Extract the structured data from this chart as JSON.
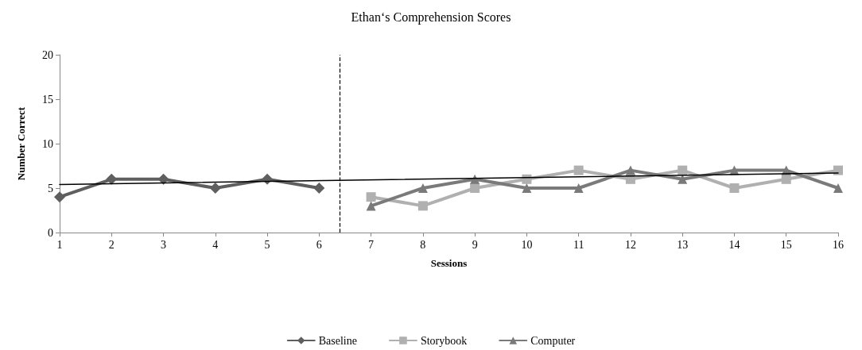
{
  "chart_data": {
    "type": "line",
    "title": "Ethan‘s Comprehension Scores",
    "xlabel": "Sessions",
    "ylabel": "Number Correct",
    "xlim": [
      1,
      16
    ],
    "xticks": [
      1,
      2,
      3,
      4,
      5,
      6,
      7,
      8,
      9,
      10,
      11,
      12,
      13,
      14,
      15,
      16
    ],
    "ylim": [
      0,
      20
    ],
    "yticks": [
      0,
      5,
      10,
      15,
      20
    ],
    "grid": false,
    "legend": "bottom",
    "series": [
      {
        "name": "Baseline",
        "color": "#5f5f5f",
        "marker": "diamond",
        "x": [
          1,
          2,
          3,
          4,
          5,
          6
        ],
        "values": [
          4,
          6,
          6,
          5,
          6,
          5
        ]
      },
      {
        "name": "Storybook",
        "color": "#b0b0b0",
        "marker": "square",
        "x": [
          7,
          8,
          9,
          10,
          11,
          12,
          13,
          14,
          15,
          16
        ],
        "values": [
          4,
          3,
          5,
          6,
          7,
          6,
          7,
          5,
          6,
          7
        ]
      },
      {
        "name": "Computer",
        "color": "#7a7a7a",
        "marker": "triangle",
        "x": [
          7,
          8,
          9,
          10,
          11,
          12,
          13,
          14,
          15,
          16
        ],
        "values": [
          3,
          5,
          6,
          5,
          5,
          7,
          6,
          7,
          7,
          5
        ]
      },
      {
        "color": "#000000",
        "marker": "none",
        "x": [
          1,
          16
        ],
        "values": [
          5.4,
          6.7
        ]
      }
    ],
    "ref_lines": [
      {
        "axis": "x",
        "value": 6.4,
        "color": "#000000",
        "line_style": "dashed"
      }
    ]
  }
}
